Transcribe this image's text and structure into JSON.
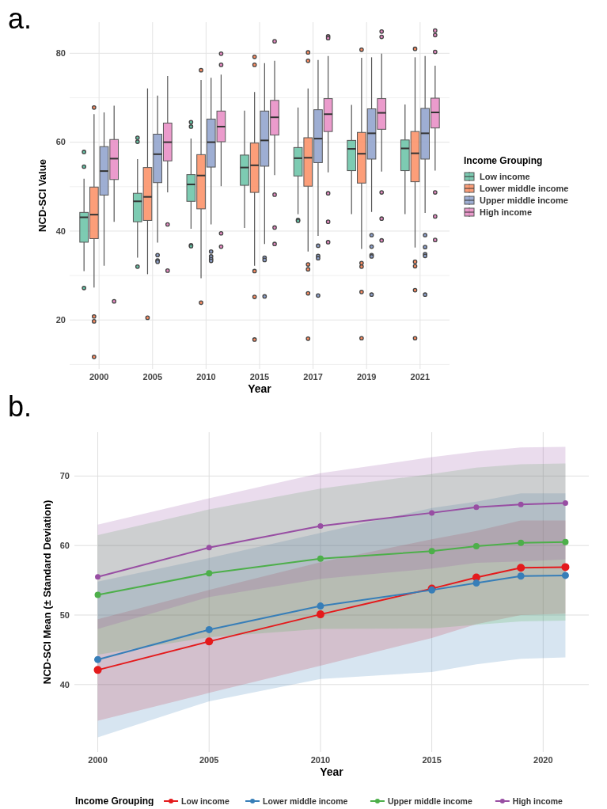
{
  "chart_data": [
    {
      "type": "box",
      "annotations": [
        "a."
      ],
      "xlabel": "Year",
      "ylabel": "NCD-SCI Value",
      "legend_title": "Income Grouping",
      "legend": "right",
      "grid": true,
      "categories": [
        "2000",
        "2005",
        "2010",
        "2015",
        "2017",
        "2019",
        "2021"
      ],
      "ylim": [
        9,
        87
      ],
      "yticks": [
        {
          "value": 10,
          "label": null
        },
        20,
        {
          "value": 30,
          "label": null
        },
        40,
        {
          "value": 50,
          "label": null
        },
        60,
        {
          "value": 70,
          "label": null
        },
        80
      ],
      "series": [
        {
          "name": "Low income",
          "color": "#66c2a5",
          "boxes": [
            {
              "low": 31.0,
              "q1": 37.5,
              "median": 43.1,
              "q3": 44.2,
              "high": 51.8,
              "outliers": [
                57.8,
                54.5,
                27.2
              ]
            },
            {
              "low": 34.0,
              "q1": 42.1,
              "median": 46.7,
              "q3": 48.5,
              "high": 56.2,
              "outliers": [
                61.0,
                60.1,
                32.0
              ]
            },
            {
              "low": 40.5,
              "q1": 46.7,
              "median": 50.5,
              "q3": 52.7,
              "high": 60.8,
              "outliers": [
                64.5,
                63.5,
                36.8,
                36.6
              ]
            },
            {
              "low": 40.7,
              "q1": 50.3,
              "median": 54.3,
              "q3": 57.1,
              "high": 67.1
            },
            {
              "low": 43.8,
              "q1": 52.4,
              "median": 56.4,
              "q3": 58.8,
              "high": 67.8,
              "outliers": [
                42.5,
                42.3
              ]
            },
            {
              "low": 43.8,
              "q1": 53.6,
              "median": 58.5,
              "q3": 60.4,
              "high": 68.4
            },
            {
              "low": 43.8,
              "q1": 53.6,
              "median": 58.6,
              "q3": 60.5,
              "high": 68.5
            }
          ]
        },
        {
          "name": "Lower middle income",
          "color": "#fc8d62",
          "boxes": [
            {
              "low": 27.3,
              "q1": 38.3,
              "median": 43.7,
              "q3": 49.9,
              "high": 66.3,
              "outliers": [
                67.8,
                20.8,
                19.7,
                11.7
              ]
            },
            {
              "low": 30.3,
              "q1": 42.4,
              "median": 47.7,
              "q3": 54.3,
              "high": 72.1,
              "outliers": [
                20.5
              ]
            },
            {
              "low": 29.4,
              "q1": 45.0,
              "median": 52.5,
              "q3": 57.2,
              "high": 74.0,
              "outliers": [
                76.2,
                23.9
              ]
            },
            {
              "low": 32.2,
              "q1": 48.7,
              "median": 54.8,
              "q3": 59.8,
              "high": 71.3,
              "outliers": [
                79.2,
                77.4,
                31.0,
                25.2,
                15.6
              ]
            },
            {
              "low": 35.4,
              "q1": 50.1,
              "median": 56.5,
              "q3": 61.0,
              "high": 72.1,
              "outliers": [
                80.2,
                78.3,
                32.5,
                31.4,
                26.0,
                15.8
              ]
            },
            {
              "low": 36.0,
              "q1": 50.8,
              "median": 57.4,
              "q3": 62.2,
              "high": 79.0,
              "outliers": [
                80.8,
                32.8,
                32.0,
                26.3,
                15.9
              ]
            },
            {
              "low": 36.3,
              "q1": 51.1,
              "median": 57.5,
              "q3": 62.4,
              "high": 79.1,
              "outliers": [
                81.0,
                33.1,
                32.1,
                26.7,
                15.9
              ]
            }
          ]
        },
        {
          "name": "Upper middle income",
          "color": "#8da0cb",
          "boxes": [
            {
              "low": 32.2,
              "q1": 48.1,
              "median": 53.5,
              "q3": 59.0,
              "high": 66.7
            },
            {
              "low": 37.4,
              "q1": 50.9,
              "median": 57.3,
              "q3": 61.8,
              "high": 70.5,
              "outliers": [
                34.6,
                33.4,
                33.1
              ]
            },
            {
              "low": 41.5,
              "q1": 54.4,
              "median": 60.0,
              "q3": 65.2,
              "high": 74.5,
              "outliers": [
                35.4,
                34.3,
                33.7,
                33.3
              ]
            },
            {
              "low": 37.1,
              "q1": 54.6,
              "median": 60.4,
              "q3": 67.0,
              "high": 77.8,
              "outliers": [
                34.0,
                33.5,
                25.3
              ]
            },
            {
              "low": 38.9,
              "q1": 55.4,
              "median": 60.8,
              "q3": 67.3,
              "high": 78.5,
              "outliers": [
                36.7,
                34.4,
                33.9,
                25.5
              ]
            },
            {
              "low": 44.3,
              "q1": 56.2,
              "median": 62.0,
              "q3": 67.5,
              "high": 79.1,
              "outliers": [
                39.1,
                36.5,
                34.6,
                34.3,
                25.7
              ]
            },
            {
              "low": 44.1,
              "q1": 56.2,
              "median": 62.0,
              "q3": 67.6,
              "high": 79.4,
              "outliers": [
                39.1,
                36.4,
                34.8,
                34.4,
                25.7
              ]
            }
          ]
        },
        {
          "name": "High income",
          "color": "#e78ac3",
          "boxes": [
            {
              "low": 42.1,
              "q1": 51.6,
              "median": 56.3,
              "q3": 60.6,
              "high": 68.2,
              "outliers": [
                24.2
              ]
            },
            {
              "low": 48.7,
              "q1": 55.8,
              "median": 60.0,
              "q3": 64.3,
              "high": 74.9,
              "outliers": [
                41.5,
                31.1
              ]
            },
            {
              "low": 50.1,
              "q1": 60.1,
              "median": 63.5,
              "q3": 67.0,
              "high": 75.2,
              "outliers": [
                79.9,
                77.4,
                39.5,
                36.5
              ]
            },
            {
              "low": 52.6,
              "q1": 61.6,
              "median": 65.6,
              "q3": 69.4,
              "high": 78.3,
              "outliers": [
                82.7,
                48.2,
                40.8,
                37.1
              ]
            },
            {
              "low": 53.2,
              "q1": 62.4,
              "median": 66.3,
              "q3": 69.8,
              "high": 79.4,
              "outliers": [
                83.8,
                83.4,
                48.5,
                42.1,
                37.5
              ]
            },
            {
              "low": 53.4,
              "q1": 62.9,
              "median": 66.6,
              "q3": 69.8,
              "high": 79.9,
              "outliers": [
                84.9,
                83.7,
                48.7,
                42.8,
                37.9
              ]
            },
            {
              "low": 53.6,
              "q1": 63.2,
              "median": 66.7,
              "q3": 69.9,
              "high": 77.2,
              "outliers": [
                85.1,
                84.1,
                80.3,
                48.7,
                43.3,
                38.0
              ]
            }
          ]
        }
      ]
    },
    {
      "type": "line",
      "annotations": [
        "b."
      ],
      "xlabel": "Year",
      "ylabel": "NCD-SCI Mean (± Standard Deviation)",
      "legend_title": "Income Grouping",
      "legend": "bottom",
      "grid": true,
      "marker": "circle",
      "x": [
        2000,
        2005,
        2010,
        2015,
        2017,
        2019,
        2021
      ],
      "xlim": [
        1998.95,
        2022.05
      ],
      "xticks": [
        2000,
        2005,
        2010,
        2015,
        2020
      ],
      "ylim": [
        30.3,
        76.3
      ],
      "yticks": [
        40,
        50,
        60,
        70
      ],
      "series": [
        {
          "name": "Low income",
          "color": "#e41a1c",
          "values": [
            42.1,
            46.2,
            50.1,
            53.8,
            55.4,
            56.8,
            56.9
          ],
          "lower": [
            34.8,
            38.8,
            42.7,
            46.7,
            48.7,
            50.0,
            50.2
          ],
          "upper": [
            49.4,
            53.6,
            57.6,
            60.9,
            62.1,
            63.6,
            63.6
          ]
        },
        {
          "name": "Lower middle income",
          "color": "#377eb8",
          "values": [
            43.6,
            47.9,
            51.3,
            53.6,
            54.6,
            55.6,
            55.7
          ],
          "lower": [
            32.4,
            37.6,
            40.8,
            41.8,
            42.9,
            43.7,
            43.9
          ],
          "upper": [
            54.8,
            58.2,
            61.8,
            65.4,
            66.3,
            67.5,
            67.5
          ]
        },
        {
          "name": "Upper middle income",
          "color": "#4daf4a",
          "values": [
            52.9,
            56.0,
            58.1,
            59.2,
            59.9,
            60.4,
            60.5
          ],
          "lower": [
            44.3,
            46.8,
            48.0,
            48.1,
            48.6,
            49.1,
            49.2
          ],
          "upper": [
            61.5,
            65.2,
            68.2,
            70.3,
            71.2,
            71.7,
            71.8
          ]
        },
        {
          "name": "High income",
          "color": "#984ea3",
          "values": [
            55.5,
            59.7,
            62.8,
            64.7,
            65.5,
            65.9,
            66.1
          ],
          "lower": [
            48.0,
            52.6,
            55.2,
            56.7,
            57.5,
            57.7,
            58.0
          ],
          "upper": [
            63.0,
            66.8,
            70.4,
            72.7,
            73.5,
            74.1,
            74.2
          ]
        }
      ]
    }
  ]
}
